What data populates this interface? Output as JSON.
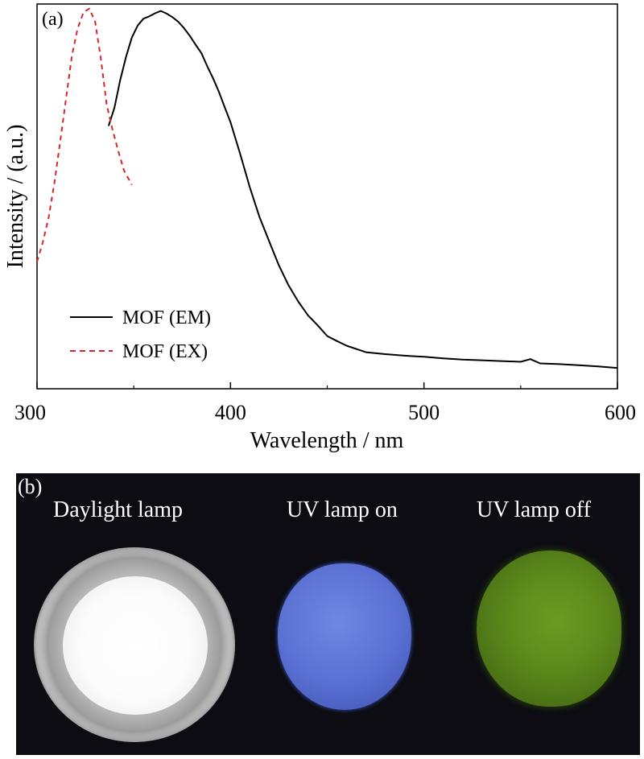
{
  "panel_a_label": "(a)",
  "panel_b_label": "(b)",
  "chart_data": {
    "type": "line",
    "xlabel": "Wavelength / nm",
    "ylabel": "Intensity / (a.u.)",
    "xlim": [
      300,
      600
    ],
    "ylim": [
      0,
      1
    ],
    "xticks": [
      "300",
      "400",
      "500",
      "600"
    ],
    "legend_position": "lower-left",
    "grid": false,
    "series": [
      {
        "name": "MOF (EM)",
        "color": "#000000",
        "style": "solid",
        "x": [
          337,
          340,
          343,
          346,
          349,
          352,
          355,
          358,
          361,
          364,
          367,
          370,
          373,
          376,
          379,
          382,
          385,
          388,
          391,
          394,
          397,
          400,
          405,
          410,
          415,
          420,
          425,
          430,
          435,
          440,
          445,
          450,
          455,
          460,
          470,
          480,
          490,
          500,
          510,
          520,
          530,
          540,
          550,
          555,
          560,
          570,
          580,
          590,
          600
        ],
        "y": [
          0.683,
          0.73,
          0.802,
          0.863,
          0.913,
          0.944,
          0.962,
          0.968,
          0.976,
          0.982,
          0.975,
          0.966,
          0.954,
          0.937,
          0.917,
          0.894,
          0.872,
          0.838,
          0.807,
          0.772,
          0.732,
          0.693,
          0.61,
          0.523,
          0.446,
          0.383,
          0.321,
          0.269,
          0.227,
          0.191,
          0.165,
          0.137,
          0.124,
          0.112,
          0.095,
          0.09,
          0.086,
          0.083,
          0.079,
          0.076,
          0.074,
          0.072,
          0.07,
          0.077,
          0.066,
          0.064,
          0.061,
          0.058,
          0.054
        ]
      },
      {
        "name": "MOF (EX)",
        "color": "#d62728",
        "style": "dashed",
        "x": [
          300,
          303,
          306,
          309,
          312,
          315,
          318,
          321,
          324,
          327,
          330,
          333,
          336,
          339,
          342,
          345,
          349
        ],
        "y": [
          0.33,
          0.381,
          0.445,
          0.535,
          0.643,
          0.755,
          0.865,
          0.937,
          0.978,
          0.988,
          0.955,
          0.858,
          0.739,
          0.674,
          0.618,
          0.567,
          0.53
        ]
      }
    ]
  },
  "photos": {
    "captions": [
      "Daylight lamp",
      "UV lamp on",
      "UV lamp off"
    ]
  }
}
